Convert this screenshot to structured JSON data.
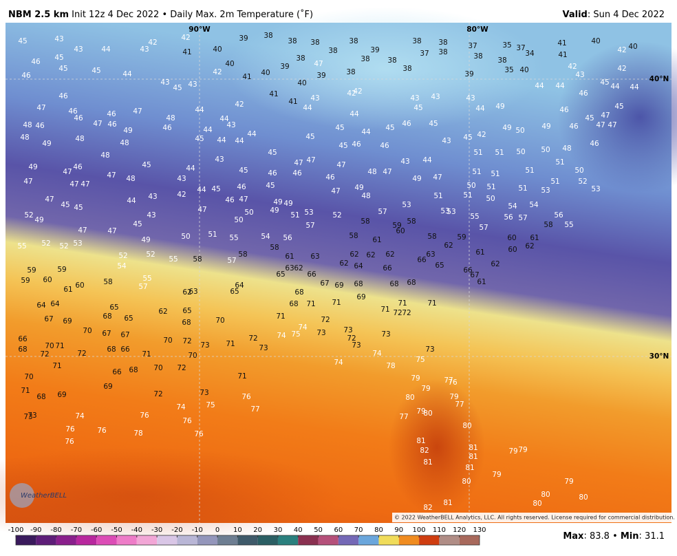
{
  "header": {
    "title": "NBM 2.5 km",
    "subtitle": "Init 12z 4 Dec 2022 • Daily Max. 2m Temperature (˚F)",
    "valid_label": "Valid",
    "valid_date": ": Sun 4 Dec 2022"
  },
  "map": {
    "graticule_labels": [
      "90°W",
      "80°W",
      "40°N",
      "30°N"
    ],
    "logo": "WeatherBELL",
    "copyright": "© 2022 WeatherBELL Analytics, LLC. All rights reserved. License required for commercial distribution.",
    "temperature_labels": [
      45,
      43,
      42,
      42,
      39,
      38,
      38,
      38,
      38,
      38,
      39,
      38,
      37,
      38,
      38,
      37,
      38,
      35,
      37,
      34,
      41,
      40,
      42,
      40,
      46,
      45,
      43,
      44,
      43,
      41,
      40,
      39,
      38,
      47,
      39,
      38,
      38,
      38,
      38,
      39,
      38,
      35,
      40,
      41,
      42,
      43,
      42,
      46,
      45,
      45,
      44,
      43,
      45,
      43,
      42,
      40,
      41,
      40,
      40,
      41,
      42,
      41,
      43,
      42,
      42,
      43,
      43,
      43,
      44,
      44,
      45,
      44,
      44,
      47,
      46,
      46,
      46,
      46,
      47,
      44,
      44,
      43,
      44,
      44,
      45,
      46,
      49,
      46,
      46,
      47,
      45,
      45,
      48,
      46,
      47,
      46,
      49,
      48,
      46,
      44,
      44,
      44,
      45,
      44,
      45,
      45,
      44,
      49,
      50,
      49,
      46,
      47,
      47,
      48,
      49,
      48,
      48,
      45,
      44,
      45,
      45,
      45,
      46,
      46,
      43,
      42,
      45,
      51,
      51,
      50,
      50,
      48,
      46,
      48,
      45,
      46,
      44,
      43,
      45,
      46,
      47,
      47,
      46,
      47,
      48,
      47,
      43,
      44,
      51,
      51,
      51,
      50,
      51,
      49,
      47,
      47,
      47,
      47,
      47,
      48,
      43,
      42,
      44,
      45,
      46,
      45,
      46,
      47,
      49,
      48,
      49,
      47,
      51,
      50,
      51,
      51,
      50,
      51,
      53,
      51,
      52,
      53,
      47,
      45,
      45,
      44,
      43,
      47,
      46,
      47,
      49,
      49,
      50,
      49,
      51,
      53,
      52,
      57,
      53,
      53,
      53,
      54,
      54,
      52,
      49,
      43,
      45,
      47,
      47,
      50,
      57,
      58,
      55,
      57,
      56,
      57,
      58,
      56,
      55,
      59,
      58,
      55,
      52,
      52,
      53,
      49,
      50,
      51,
      55,
      54,
      56,
      58,
      61,
      60,
      58,
      62,
      59,
      60,
      61,
      62,
      60,
      52,
      52,
      54,
      55,
      58,
      57,
      58,
      58,
      61,
      63,
      62,
      63,
      62,
      62,
      64,
      62,
      66,
      62,
      66,
      63,
      65,
      61,
      62,
      59,
      59,
      59,
      60,
      61,
      60,
      58,
      55,
      57,
      65,
      66,
      67,
      69,
      68,
      68,
      68,
      66,
      67,
      61,
      64,
      65,
      63,
      62,
      64,
      64,
      65,
      62,
      65,
      68,
      68,
      71,
      69,
      71,
      71,
      71,
      72,
      72,
      71,
      71,
      72,
      67,
      69,
      68,
      65,
      68,
      70,
      70,
      67,
      67,
      74,
      75,
      74,
      73,
      73,
      73,
      72,
      73,
      74,
      73,
      75,
      66,
      68,
      70,
      71,
      72,
      72,
      70,
      72,
      73,
      71,
      72,
      73,
      68,
      66,
      71,
      70,
      72,
      70,
      71,
      66,
      68,
      74,
      78,
      70,
      71,
      68,
      69,
      69,
      71,
      72,
      73,
      79,
      77,
      76,
      79,
      79,
      80,
      77,
      73,
      73,
      74,
      74,
      75,
      76,
      77,
      76,
      76,
      77,
      79,
      80,
      76,
      76,
      78,
      76,
      76,
      80,
      81,
      82,
      81,
      81,
      81,
      79,
      79,
      81,
      79,
      80,
      79,
      80,
      80,
      80,
      81,
      82
    ]
  },
  "colorbar": {
    "ticks": [
      -100,
      -90,
      -80,
      -70,
      -60,
      -50,
      -40,
      -30,
      -20,
      -10,
      0,
      10,
      20,
      30,
      40,
      50,
      60,
      70,
      80,
      90,
      100,
      110,
      120,
      130
    ],
    "colors": [
      "#3a1a5c",
      "#5e1d78",
      "#8a1f8c",
      "#b8279e",
      "#dc4cb6",
      "#ee7cc8",
      "#f2a6d6",
      "#d9c6e6",
      "#b9b6d6",
      "#9496bb",
      "#6e7e92",
      "#3f5a6a",
      "#2b5f64",
      "#2a807e",
      "#8a3050",
      "#b5507a",
      "#7468b6",
      "#6aa6dc",
      "#f0dc5a",
      "#f08c20",
      "#cf3d10",
      "#b08d86",
      "#a8695c",
      "#138a44"
    ]
  },
  "stats": {
    "max_label": "Max",
    "max_value": 83.8,
    "separator": "•",
    "min_label": "Min",
    "min_value": 31.1
  }
}
